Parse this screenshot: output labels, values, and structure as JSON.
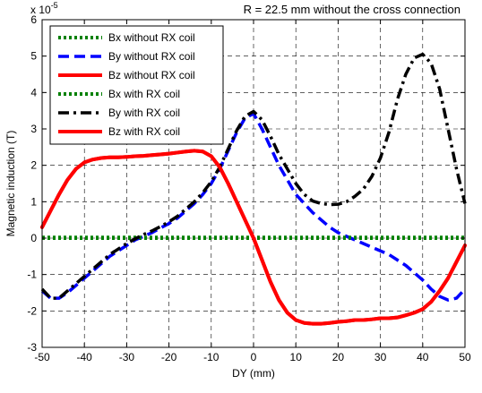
{
  "chart_data": {
    "type": "line",
    "title": "R = 22.5 mm without the cross connection",
    "xlabel": "DY (mm)",
    "ylabel": "Magnetic induction (T)",
    "y_multiplier_label": "x 10",
    "y_multiplier_exponent": "-5",
    "xlim": [
      -50,
      50
    ],
    "ylim": [
      -3,
      6
    ],
    "xticks": [
      -50,
      -40,
      -30,
      -20,
      -10,
      0,
      10,
      20,
      30,
      40,
      50
    ],
    "yticks": [
      -3,
      -2,
      -1,
      0,
      1,
      2,
      3,
      4,
      5,
      6
    ],
    "grid": true,
    "legend_position": "top-left",
    "series": [
      {
        "name": "Bx without RX coil",
        "color": "#008000",
        "style": "dotted",
        "x": [
          -50,
          -40,
          -30,
          -20,
          -10,
          0,
          10,
          20,
          30,
          40,
          50
        ],
        "y": [
          0,
          0,
          0,
          0,
          0,
          0,
          0,
          0,
          0,
          0,
          0
        ]
      },
      {
        "name": "By without RX coil",
        "color": "#0000FF",
        "style": "dashed",
        "x": [
          -50,
          -48,
          -46,
          -44,
          -42,
          -40,
          -38,
          -36,
          -34,
          -32,
          -30,
          -28,
          -26,
          -24,
          -22,
          -20,
          -18,
          -16,
          -14,
          -12,
          -10,
          -8,
          -6,
          -4,
          -2,
          0,
          2,
          4,
          6,
          8,
          10,
          12,
          14,
          16,
          18,
          20,
          22,
          24,
          26,
          28,
          30,
          32,
          34,
          36,
          38,
          40,
          42,
          44,
          46,
          48,
          50
        ],
        "y": [
          -1.45,
          -1.65,
          -1.65,
          -1.5,
          -1.3,
          -1.1,
          -0.9,
          -0.7,
          -0.5,
          -0.35,
          -0.2,
          -0.05,
          0.05,
          0.15,
          0.28,
          0.4,
          0.55,
          0.75,
          0.95,
          1.2,
          1.5,
          1.9,
          2.4,
          2.9,
          3.3,
          3.42,
          3.0,
          2.5,
          2.0,
          1.6,
          1.2,
          0.95,
          0.7,
          0.5,
          0.3,
          0.15,
          0.05,
          -0.05,
          -0.15,
          -0.25,
          -0.35,
          -0.45,
          -0.6,
          -0.75,
          -0.95,
          -1.15,
          -1.4,
          -1.6,
          -1.7,
          -1.65,
          -1.4
        ]
      },
      {
        "name": "Bz without RX coil",
        "color": "#FF0000",
        "style": "solid",
        "x": [
          -50,
          -48,
          -46,
          -44,
          -42,
          -40,
          -38,
          -36,
          -34,
          -32,
          -30,
          -28,
          -26,
          -24,
          -22,
          -20,
          -18,
          -16,
          -14,
          -12,
          -10,
          -8,
          -6,
          -4,
          -2,
          0,
          2,
          4,
          6,
          8,
          10,
          12,
          14,
          16,
          18,
          20,
          22,
          24,
          26,
          28,
          30,
          32,
          34,
          36,
          38,
          40,
          42,
          44,
          46,
          48,
          50
        ],
        "y": [
          0.3,
          0.75,
          1.2,
          1.6,
          1.9,
          2.08,
          2.16,
          2.2,
          2.22,
          2.22,
          2.23,
          2.25,
          2.26,
          2.28,
          2.3,
          2.32,
          2.35,
          2.38,
          2.4,
          2.38,
          2.25,
          1.95,
          1.5,
          1.0,
          0.5,
          0.0,
          -0.6,
          -1.2,
          -1.7,
          -2.05,
          -2.25,
          -2.33,
          -2.35,
          -2.35,
          -2.33,
          -2.3,
          -2.28,
          -2.25,
          -2.25,
          -2.23,
          -2.2,
          -2.2,
          -2.18,
          -2.12,
          -2.05,
          -1.95,
          -1.75,
          -1.45,
          -1.1,
          -0.65,
          -0.2
        ]
      },
      {
        "name": "Bx with RX coil",
        "color": "#008000",
        "style": "dotted",
        "x": [
          -50,
          -40,
          -30,
          -20,
          -10,
          0,
          10,
          20,
          30,
          40,
          50
        ],
        "y": [
          0.02,
          0.02,
          0.02,
          0.02,
          0.02,
          0.02,
          0.02,
          0.02,
          0.02,
          0.02,
          0.02
        ]
      },
      {
        "name": "By with RX coil",
        "color": "#000000",
        "style": "dashdot",
        "x": [
          -50,
          -48,
          -46,
          -44,
          -42,
          -40,
          -38,
          -36,
          -34,
          -32,
          -30,
          -28,
          -26,
          -24,
          -22,
          -20,
          -18,
          -16,
          -14,
          -12,
          -10,
          -8,
          -6,
          -4,
          -2,
          0,
          2,
          4,
          6,
          8,
          10,
          12,
          14,
          16,
          18,
          20,
          22,
          24,
          26,
          28,
          30,
          32,
          34,
          36,
          38,
          40,
          42,
          44,
          46,
          48,
          50
        ],
        "y": [
          -1.4,
          -1.65,
          -1.65,
          -1.45,
          -1.25,
          -1.05,
          -0.85,
          -0.65,
          -0.45,
          -0.3,
          -0.15,
          -0.02,
          0.1,
          0.2,
          0.32,
          0.45,
          0.6,
          0.8,
          1.0,
          1.25,
          1.55,
          1.95,
          2.45,
          2.95,
          3.35,
          3.48,
          3.25,
          2.8,
          2.3,
          1.9,
          1.5,
          1.2,
          1.02,
          0.95,
          0.92,
          0.93,
          1.0,
          1.15,
          1.35,
          1.7,
          2.2,
          2.9,
          3.8,
          4.5,
          4.95,
          5.05,
          4.8,
          4.1,
          3.0,
          1.9,
          0.95
        ]
      },
      {
        "name": "Bz with RX coil",
        "color": "#FF0000",
        "style": "solid",
        "x": [
          -50,
          -48,
          -46,
          -44,
          -42,
          -40,
          -38,
          -36,
          -34,
          -32,
          -30,
          -28,
          -26,
          -24,
          -22,
          -20,
          -18,
          -16,
          -14,
          -12,
          -10,
          -8,
          -6,
          -4,
          -2,
          0,
          2,
          4,
          6,
          8,
          10,
          12,
          14,
          16,
          18,
          20,
          22,
          24,
          26,
          28,
          30,
          32,
          34,
          36,
          38,
          40,
          42,
          44,
          46,
          48,
          50
        ],
        "y": [
          0.3,
          0.75,
          1.2,
          1.6,
          1.9,
          2.08,
          2.16,
          2.2,
          2.22,
          2.22,
          2.23,
          2.25,
          2.26,
          2.28,
          2.3,
          2.32,
          2.35,
          2.38,
          2.4,
          2.38,
          2.25,
          1.95,
          1.5,
          1.0,
          0.5,
          0.0,
          -0.6,
          -1.2,
          -1.7,
          -2.05,
          -2.25,
          -2.33,
          -2.35,
          -2.35,
          -2.33,
          -2.3,
          -2.28,
          -2.25,
          -2.25,
          -2.23,
          -2.2,
          -2.2,
          -2.18,
          -2.12,
          -2.05,
          -1.95,
          -1.75,
          -1.45,
          -1.1,
          -0.65,
          -0.2
        ]
      }
    ]
  }
}
